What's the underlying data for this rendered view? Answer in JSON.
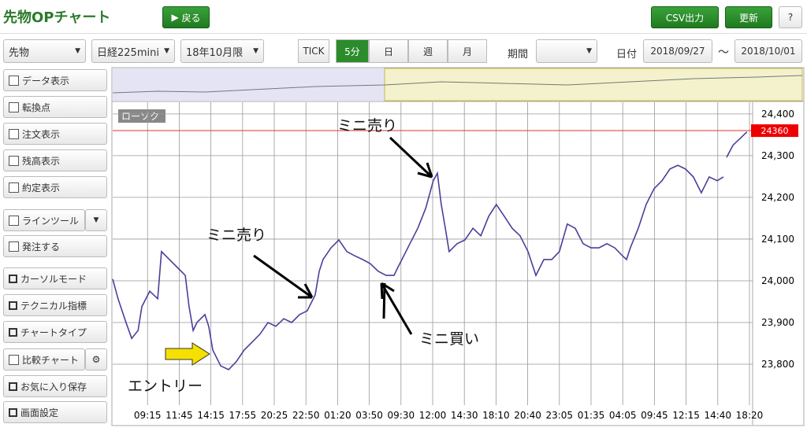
{
  "header": {
    "title": "先物OPチャート",
    "back": "戻る",
    "csv": "CSV出力",
    "refresh": "更新",
    "help": "?"
  },
  "toolbar": {
    "selects": [
      "先物",
      "日経225mini",
      "18年10月限"
    ],
    "tabs": [
      "TICK",
      "5分",
      "日",
      "週",
      "月"
    ],
    "period_label": "期間",
    "date_label": "日付",
    "date_from": "2018/09/27",
    "date_sep": "～",
    "date_to": "2018/10/01"
  },
  "sidebar": {
    "items": [
      "データ表示",
      "転換点",
      "注文表示",
      "残高表示",
      "約定表示",
      "ラインツール",
      "発注する",
      "カーソルモード",
      "テクニカル指標",
      "チャートタイプ",
      "比較チャート",
      "お気に入り保存",
      "画面設定"
    ]
  },
  "chart_data": {
    "type": "line",
    "chart_label": "ローソク",
    "x": [
      0,
      1.7,
      4.2,
      6,
      8,
      9.2,
      11.7,
      14.2,
      15.4,
      17.9,
      20.4,
      22.9,
      24.1,
      25.4,
      26.6,
      29.1,
      30.3,
      31.6,
      34.1,
      36.6,
      39,
      41.5,
      44,
      46.5,
      49,
      51.5,
      54,
      56.5,
      59,
      61.4,
      63.9,
      65.2,
      66.4,
      68.9,
      71.4,
      73.9,
      76.4,
      78.9,
      81.3,
      83.8,
      86.3,
      88.8,
      90,
      91.3,
      93.8,
      96.3,
      98.8,
      101.2,
      102.5,
      103.7,
      105,
      106.2,
      108.7,
      111.2,
      113.7,
      116.2,
      118.7,
      121.1,
      123.6,
      126.1,
      128.6,
      131.1,
      133.6,
      136.1,
      138.6,
      141,
      143.5,
      146,
      148.5,
      151,
      153.5,
      156,
      158.5,
      160.9,
      162.2,
      163.4,
      165.9,
      168.4,
      170.9,
      173.4,
      175.9,
      178.4,
      180.8,
      183.3,
      185.8,
      188.3,
      190.8,
      192.8,
      193.3,
      193.8,
      195.8,
      198.3,
      200.2
    ],
    "series": [
      {
        "name": "日経225mini",
        "color": "#4a3f9a",
        "values": [
          24004,
          23957,
          23900,
          23862,
          23881,
          23938,
          23975,
          23957,
          24070,
          24051,
          24032,
          24013,
          23938,
          23881,
          23900,
          23919,
          23891,
          23834,
          23796,
          23787,
          23806,
          23834,
          23853,
          23872,
          23900,
          23891,
          23909,
          23900,
          23919,
          23928,
          23966,
          24023,
          24051,
          24079,
          24098,
          24070,
          24060,
          24051,
          24041,
          24023,
          24013,
          24013,
          24032,
          24051,
          24089,
          24126,
          24174,
          24240,
          24258,
          24183,
          24126,
          24070,
          24089,
          24098,
          24126,
          24108,
          24155,
          24183,
          24155,
          24126,
          24108,
          24070,
          24013,
          24051,
          24051,
          24070,
          24136,
          24126,
          24089,
          24079,
          24079,
          24089,
          24079,
          24060,
          24051,
          24079,
          24126,
          24183,
          24221,
          24240,
          24268,
          24277,
          24268,
          24249,
          24211,
          24249,
          24240,
          24249,
          null,
          24296,
          24325,
          24343,
          24357
        ]
      }
    ],
    "xlim": [
      0,
      202
    ],
    "xticks": [
      {
        "value": 11,
        "label": "09:15"
      },
      {
        "value": 21,
        "label": "11:45"
      },
      {
        "value": 31,
        "label": "14:15"
      },
      {
        "value": 41,
        "label": "17:55"
      },
      {
        "value": 51,
        "label": "20:25"
      },
      {
        "value": 61,
        "label": "22:50"
      },
      {
        "value": 71,
        "label": "01:20"
      },
      {
        "value": 81,
        "label": "03:50"
      },
      {
        "value": 91,
        "label": "09:30"
      },
      {
        "value": 101,
        "label": "12:00"
      },
      {
        "value": 111,
        "label": "14:30"
      },
      {
        "value": 121,
        "label": "18:10"
      },
      {
        "value": 131,
        "label": "20:40"
      },
      {
        "value": 141,
        "label": "23:05"
      },
      {
        "value": 151,
        "label": "01:35"
      },
      {
        "value": 161,
        "label": "04:05"
      },
      {
        "value": 171,
        "label": "09:45"
      },
      {
        "value": 181,
        "label": "12:15"
      },
      {
        "value": 191,
        "label": "14:40"
      },
      {
        "value": 201,
        "label": "18:20"
      }
    ],
    "ylim": [
      23702,
      24428
    ],
    "yticks": [
      {
        "value": 23800,
        "label": "23,800"
      },
      {
        "value": 23900,
        "label": "23,900"
      },
      {
        "value": 24000,
        "label": "24,000"
      },
      {
        "value": 24100,
        "label": "24,100"
      },
      {
        "value": 24200,
        "label": "24,200"
      },
      {
        "value": 24300,
        "label": "24,300"
      },
      {
        "value": 24400,
        "label": "24,400"
      }
    ],
    "grid": true,
    "last_price": 24360,
    "annotations": [
      "ミニ売り",
      "ミニ売り",
      "ミニ買い",
      "エントリー"
    ]
  }
}
